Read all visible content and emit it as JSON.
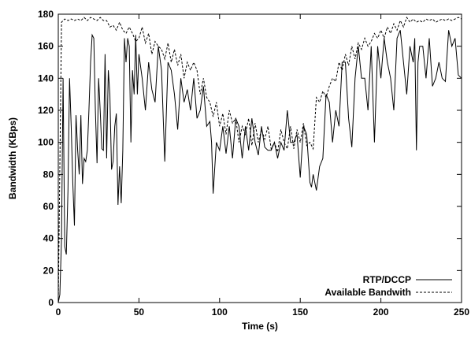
{
  "chart_data": {
    "type": "line",
    "title": "",
    "xlabel": "Time (s)",
    "ylabel": "Bandwidth (KBps)",
    "xlim": [
      0,
      250
    ],
    "ylim": [
      0,
      180
    ],
    "xticks": [
      0,
      50,
      100,
      150,
      200,
      250
    ],
    "yticks": [
      0,
      20,
      40,
      60,
      80,
      100,
      120,
      140,
      160,
      180
    ],
    "grid": false,
    "legend_position": "bottom-right",
    "series": [
      {
        "name": "RTP/DCCP",
        "style": "solid",
        "color": "#000000",
        "x": [
          0,
          1,
          2,
          3,
          4,
          5,
          6,
          7,
          8,
          9,
          10,
          11,
          12,
          13,
          14,
          15,
          16,
          17,
          18,
          19,
          20,
          21,
          22,
          23,
          24,
          25,
          26,
          27,
          28,
          29,
          30,
          31,
          32,
          33,
          34,
          35,
          36,
          37,
          38,
          39,
          40,
          41,
          42,
          43,
          44,
          45,
          46,
          47,
          48,
          49,
          50,
          52,
          54,
          56,
          58,
          60,
          62,
          64,
          66,
          68,
          70,
          72,
          74,
          76,
          78,
          80,
          82,
          84,
          86,
          88,
          90,
          92,
          94,
          95,
          96,
          98,
          100,
          102,
          104,
          106,
          108,
          110,
          112,
          114,
          116,
          118,
          120,
          122,
          124,
          126,
          128,
          130,
          132,
          134,
          136,
          138,
          140,
          142,
          144,
          146,
          148,
          150,
          152,
          154,
          155,
          156,
          157,
          158,
          160,
          162,
          164,
          166,
          168,
          170,
          172,
          174,
          176,
          178,
          180,
          182,
          184,
          186,
          188,
          190,
          192,
          194,
          196,
          198,
          200,
          202,
          204,
          206,
          208,
          210,
          212,
          214,
          216,
          218,
          220,
          221,
          222,
          223,
          224,
          226,
          228,
          230,
          232,
          234,
          236,
          238,
          240,
          242,
          244,
          246,
          248,
          250
        ],
        "y": [
          0,
          5,
          40,
          140,
          35,
          30,
          70,
          140,
          110,
          75,
          48,
          117,
          95,
          80,
          117,
          74,
          90,
          88,
          95,
          120,
          150,
          167,
          165,
          120,
          87,
          140,
          120,
          96,
          95,
          155,
          90,
          145,
          130,
          83,
          88,
          110,
          118,
          61,
          85,
          62,
          95,
          165,
          150,
          165,
          160,
          100,
          145,
          130,
          167,
          130,
          155,
          140,
          120,
          150,
          133,
          125,
          160,
          145,
          88,
          150,
          145,
          130,
          108,
          140,
          125,
          133,
          120,
          140,
          115,
          120,
          135,
          110,
          113,
          100,
          68,
          100,
          95,
          110,
          93,
          110,
          90,
          115,
          110,
          90,
          110,
          95,
          115,
          100,
          92,
          110,
          97,
          95,
          95,
          100,
          90,
          100,
          95,
          120,
          100,
          100,
          105,
          78,
          110,
          105,
          90,
          75,
          72,
          80,
          70,
          85,
          90,
          130,
          125,
          100,
          120,
          110,
          150,
          150,
          115,
          97,
          140,
          160,
          140,
          140,
          120,
          160,
          100,
          160,
          140,
          165,
          150,
          140,
          120,
          165,
          170,
          150,
          130,
          160,
          150,
          165,
          95,
          150,
          160,
          160,
          140,
          165,
          135,
          140,
          150,
          140,
          138,
          170,
          160,
          165,
          142,
          140
        ]
      },
      {
        "name": "Available Bandwith",
        "style": "dashed",
        "color": "#000000",
        "x": [
          0,
          2,
          4,
          6,
          8,
          10,
          12,
          14,
          16,
          18,
          20,
          22,
          24,
          26,
          28,
          30,
          32,
          34,
          36,
          38,
          40,
          42,
          44,
          46,
          48,
          50,
          52,
          54,
          56,
          58,
          60,
          62,
          64,
          66,
          68,
          70,
          72,
          74,
          76,
          78,
          80,
          82,
          84,
          86,
          88,
          90,
          92,
          94,
          96,
          98,
          100,
          102,
          104,
          106,
          108,
          110,
          112,
          114,
          116,
          118,
          120,
          122,
          124,
          126,
          128,
          130,
          132,
          134,
          136,
          138,
          140,
          142,
          144,
          146,
          148,
          150,
          152,
          154,
          156,
          158,
          160,
          162,
          164,
          166,
          168,
          170,
          172,
          174,
          176,
          178,
          180,
          182,
          184,
          186,
          188,
          190,
          192,
          194,
          196,
          198,
          200,
          202,
          204,
          206,
          208,
          210,
          212,
          214,
          216,
          218,
          220,
          222,
          224,
          226,
          228,
          230,
          232,
          234,
          236,
          238,
          240,
          242,
          244,
          246,
          248,
          250
        ],
        "y": [
          0,
          175,
          177,
          176,
          177,
          176,
          177,
          176,
          178,
          176,
          178,
          177,
          176,
          178,
          176,
          176,
          172,
          173,
          170,
          175,
          170,
          168,
          172,
          168,
          163,
          165,
          172,
          162,
          168,
          155,
          163,
          160,
          158,
          152,
          162,
          150,
          158,
          148,
          155,
          140,
          150,
          145,
          150,
          145,
          130,
          140,
          128,
          125,
          116,
          125,
          110,
          118,
          105,
          120,
          112,
          115,
          100,
          110,
          105,
          115,
          98,
          112,
          100,
          108,
          102,
          110,
          96,
          100,
          94,
          108,
          100,
          96,
          110,
          96,
          108,
          100,
          112,
          98,
          100,
          96,
          128,
          125,
          132,
          128,
          135,
          140,
          138,
          150,
          145,
          155,
          148,
          160,
          152,
          162,
          158,
          165,
          160,
          163,
          168,
          165,
          170,
          165,
          172,
          168,
          174,
          170,
          176,
          172,
          178,
          175,
          177,
          175,
          176,
          175,
          177,
          176,
          177,
          175,
          176,
          177,
          176,
          177,
          176,
          177,
          178,
          177
        ]
      }
    ]
  }
}
